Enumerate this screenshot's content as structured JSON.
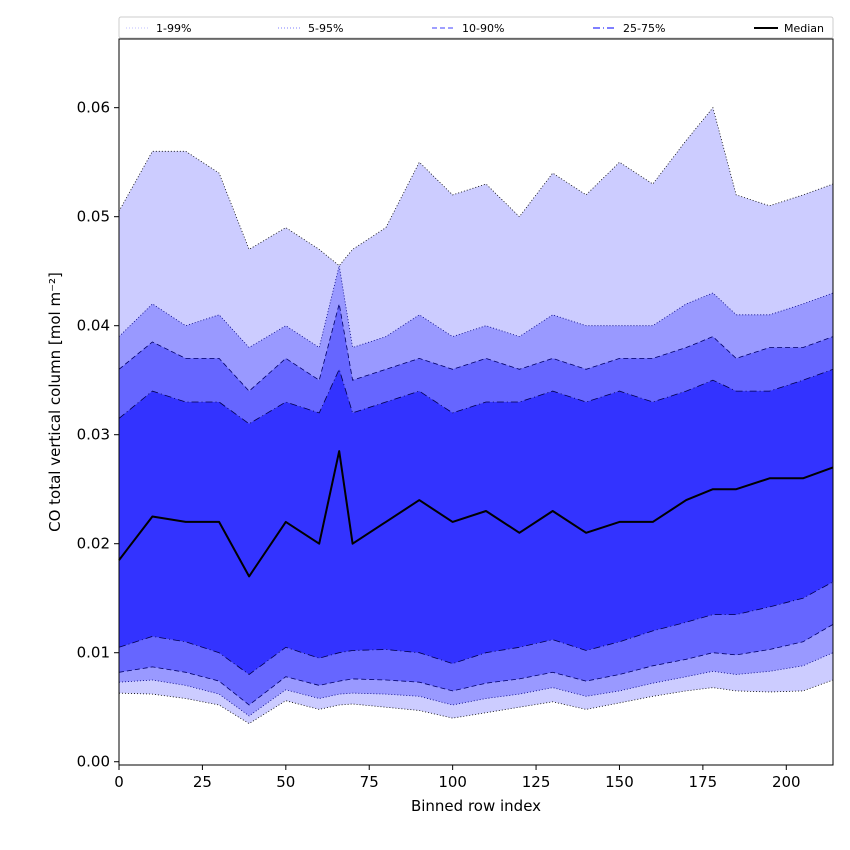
{
  "chart_data": {
    "type": "area",
    "xlabel": "Binned row index",
    "ylabel": "CO total vertical column [mol m⁻²]",
    "xlim": [
      0,
      214
    ],
    "ylim": [
      -0.0003,
      0.0663
    ],
    "x_ticks": [
      0,
      25,
      50,
      75,
      100,
      125,
      150,
      175,
      200
    ],
    "x_tick_labels": [
      "0",
      "25",
      "50",
      "75",
      "100",
      "125",
      "150",
      "175",
      "200"
    ],
    "y_ticks": [
      0.0,
      0.01,
      0.02,
      0.03,
      0.04,
      0.05,
      0.06
    ],
    "y_tick_labels": [
      "0.00",
      "0.01",
      "0.02",
      "0.03",
      "0.04",
      "0.05",
      "0.06"
    ],
    "grid": false,
    "legend_position": "top",
    "x": [
      0,
      10,
      20,
      30,
      39,
      50,
      60,
      66,
      70,
      80,
      90,
      100,
      110,
      120,
      130,
      140,
      150,
      160,
      170,
      178,
      185,
      195,
      205,
      214
    ],
    "bands": [
      {
        "name": "1-99%",
        "color": "#ccccff",
        "line_color": "#000000",
        "line_style": "dotted",
        "upper": [
          0.0505,
          0.056,
          0.056,
          0.054,
          0.047,
          0.049,
          0.047,
          0.0455,
          0.047,
          0.049,
          0.055,
          0.052,
          0.053,
          0.05,
          0.054,
          0.052,
          0.055,
          0.053,
          0.057,
          0.06,
          0.052,
          0.051,
          0.052,
          0.053
        ],
        "lower": [
          0.0063,
          0.0062,
          0.0058,
          0.0052,
          0.0035,
          0.0056,
          0.0048,
          0.0052,
          0.0053,
          0.005,
          0.0047,
          0.004,
          0.0045,
          0.005,
          0.0055,
          0.0048,
          0.0054,
          0.006,
          0.0065,
          0.0068,
          0.0065,
          0.0064,
          0.0065,
          0.0075
        ]
      },
      {
        "name": "5-95%",
        "color": "#9999ff",
        "line_color": "#000080",
        "line_style": "dotted",
        "upper": [
          0.039,
          0.042,
          0.04,
          0.041,
          0.038,
          0.04,
          0.038,
          0.0455,
          0.038,
          0.039,
          0.041,
          0.039,
          0.04,
          0.039,
          0.041,
          0.04,
          0.04,
          0.04,
          0.042,
          0.043,
          0.041,
          0.041,
          0.042,
          0.043
        ],
        "lower": [
          0.0073,
          0.0075,
          0.007,
          0.0062,
          0.0042,
          0.0066,
          0.0058,
          0.0062,
          0.0063,
          0.0062,
          0.006,
          0.0052,
          0.0058,
          0.0062,
          0.0068,
          0.006,
          0.0065,
          0.0072,
          0.0078,
          0.0083,
          0.008,
          0.0083,
          0.0088,
          0.01
        ]
      },
      {
        "name": "10-90%",
        "color": "#6666ff",
        "line_color": "#000066",
        "line_style": "dashed",
        "upper": [
          0.036,
          0.0385,
          0.037,
          0.037,
          0.034,
          0.037,
          0.035,
          0.042,
          0.035,
          0.036,
          0.037,
          0.036,
          0.037,
          0.036,
          0.037,
          0.036,
          0.037,
          0.037,
          0.038,
          0.039,
          0.037,
          0.038,
          0.038,
          0.039
        ],
        "lower": [
          0.0082,
          0.0087,
          0.0082,
          0.0074,
          0.0052,
          0.0078,
          0.007,
          0.0074,
          0.0076,
          0.0075,
          0.0073,
          0.0065,
          0.0072,
          0.0076,
          0.0082,
          0.0074,
          0.008,
          0.0088,
          0.0094,
          0.01,
          0.0098,
          0.0103,
          0.011,
          0.0126
        ]
      },
      {
        "name": "25-75%",
        "color": "#3333ff",
        "line_color": "#00004d",
        "line_style": "dashdot",
        "upper": [
          0.0315,
          0.034,
          0.033,
          0.033,
          0.031,
          0.033,
          0.032,
          0.036,
          0.032,
          0.033,
          0.034,
          0.032,
          0.033,
          0.033,
          0.034,
          0.033,
          0.034,
          0.033,
          0.034,
          0.035,
          0.034,
          0.034,
          0.035,
          0.036
        ],
        "lower": [
          0.0105,
          0.0115,
          0.011,
          0.01,
          0.008,
          0.0105,
          0.0095,
          0.01,
          0.0102,
          0.0103,
          0.01,
          0.009,
          0.01,
          0.0105,
          0.0112,
          0.0102,
          0.011,
          0.012,
          0.0128,
          0.0135,
          0.0135,
          0.0142,
          0.015,
          0.0165
        ]
      }
    ],
    "series": [
      {
        "name": "Median",
        "color": "#000000",
        "values": [
          0.0185,
          0.0225,
          0.022,
          0.022,
          0.017,
          0.022,
          0.02,
          0.0285,
          0.02,
          0.022,
          0.024,
          0.022,
          0.023,
          0.021,
          0.023,
          0.021,
          0.022,
          0.022,
          0.024,
          0.025,
          0.025,
          0.026,
          0.026,
          0.027
        ]
      }
    ],
    "legend": [
      {
        "label": "1-99%",
        "color": "#ccccff",
        "style": "dotted"
      },
      {
        "label": "5-95%",
        "color": "#9999ff",
        "style": "dotted"
      },
      {
        "label": "10-90%",
        "color": "#6666ff",
        "style": "dashed"
      },
      {
        "label": "25-75%",
        "color": "#3333ff",
        "style": "dashdot"
      },
      {
        "label": "Median",
        "color": "#000000",
        "style": "solid"
      }
    ]
  }
}
